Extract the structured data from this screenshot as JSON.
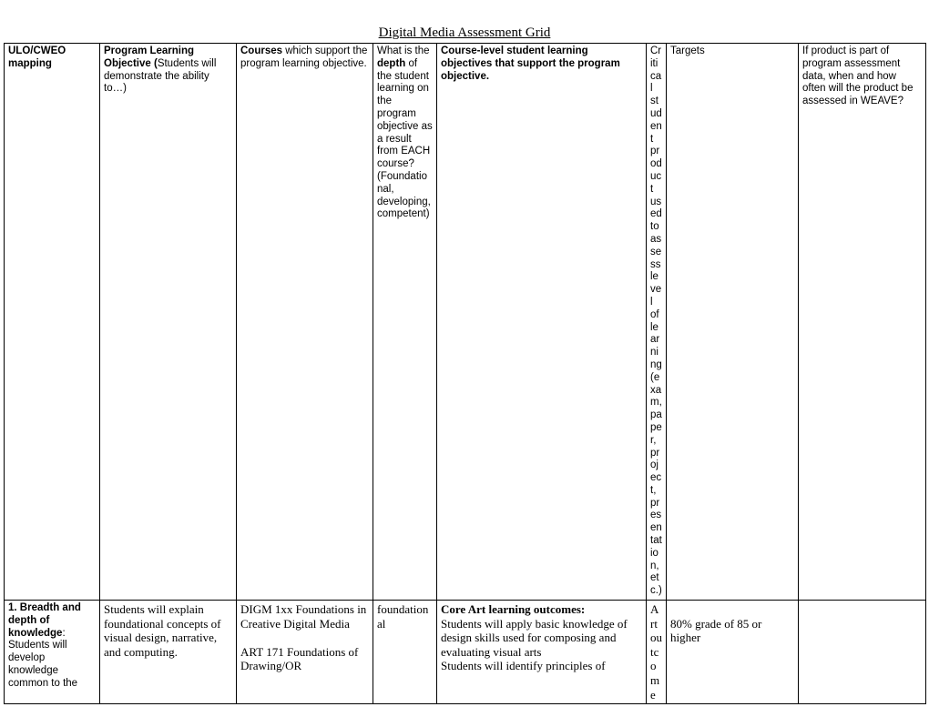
{
  "page": {
    "title": "Digital Media Assessment Grid"
  },
  "columns": {
    "widths": [
      105,
      150,
      150,
      70,
      230,
      22,
      145,
      140
    ]
  },
  "header": {
    "c1": {
      "bold": "ULO/CWEO mapping",
      "rest": ""
    },
    "c2": {
      "bold": "Program Learning Objective (",
      "rest": "Students will demonstrate the ability to…)"
    },
    "c3": {
      "bold": "Courses",
      "rest": " which support the program learning objective."
    },
    "c4": {
      "pre": "What is the ",
      "bold": "depth",
      "post": " of the student learning on the program objective as a result from EACH course? (Foundational, developing, competent)"
    },
    "c5": {
      "bold": "Course-level student learning objectives that support the program objective.",
      "rest": ""
    },
    "c6": "Critical student product used to assess level of learning (exam, paper, project, presentation, etc.)",
    "c7": "Targets",
    "c8": "If product is part of program assessment data, when and how often will the product be assessed in WEAVE?"
  },
  "row1": {
    "c1": {
      "bold": "1. Breadth and depth of knowledge",
      "rest": ": Students will develop knowledge common to the"
    },
    "c2": "Students will explain foundational concepts of visual design, narrative, and computing.",
    "c3": "DIGM 1xx Foundations in Creative Digital Media\n\nART 171 Foundations of Drawing/OR",
    "c4": "foundational",
    "c5": {
      "bold": "Core Art learning outcomes:",
      "rest": "\nStudents will apply basic knowledge of design skills used for composing and evaluating visual arts\nStudents will identify principles of"
    },
    "c6": "Art outcome",
    "c7": "\n80% grade of 85 or higher",
    "c8": ""
  }
}
